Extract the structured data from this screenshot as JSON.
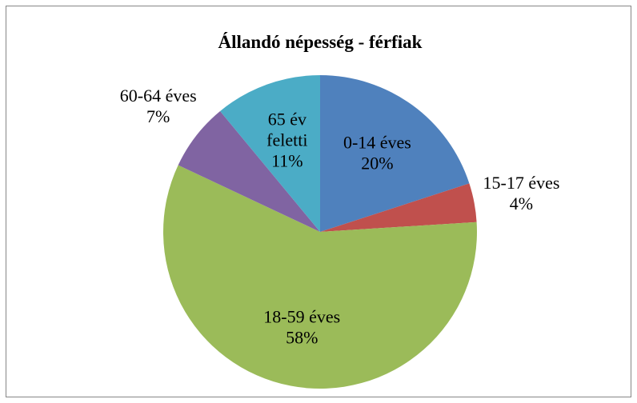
{
  "chart_data": {
    "type": "pie",
    "title": "Állandó népesség - férfiak",
    "categories": [
      "0-14 éves",
      "15-17 éves",
      "18-59 éves",
      "60-64 éves",
      "65 év feletti"
    ],
    "values": [
      20,
      4,
      58,
      7,
      11
    ],
    "value_labels": [
      "20%",
      "4%",
      "58%",
      "7%",
      "11%"
    ],
    "colors": [
      "#4f81bd",
      "#c0504d",
      "#9bbb59",
      "#8064a2",
      "#4bacc6"
    ]
  }
}
